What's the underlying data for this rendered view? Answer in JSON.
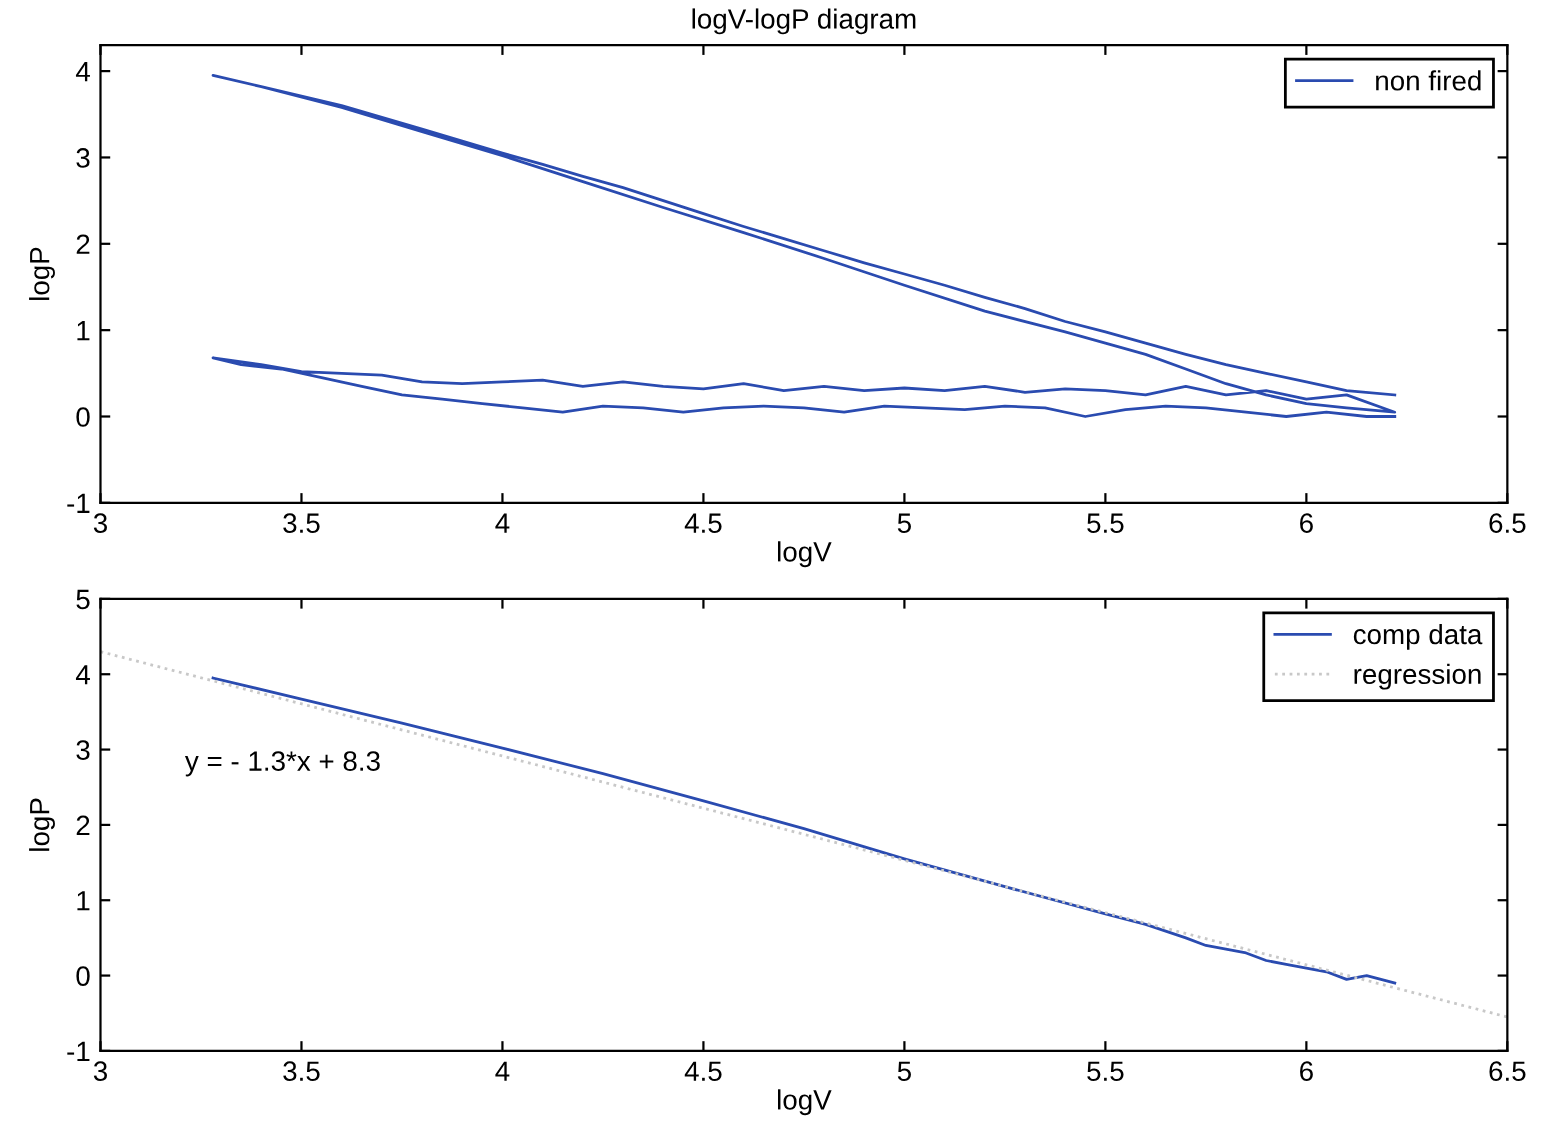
{
  "chart_data": [
    {
      "type": "line",
      "title": "logV-logP diagram",
      "xlabel": "logV",
      "ylabel": "logP",
      "xlim": [
        3,
        6.5
      ],
      "xticks": [
        3,
        3.5,
        4,
        4.5,
        5,
        5.5,
        6,
        6.5
      ],
      "ylim": [
        -1,
        4.3
      ],
      "yticks": [
        -1,
        0,
        1,
        2,
        3,
        4
      ],
      "grid": false,
      "legend": "top right",
      "series": [
        {
          "name": "non fired",
          "color": "#2a4bb0",
          "x": [
            6.22,
            6.1,
            6.0,
            5.9,
            5.8,
            5.7,
            5.6,
            5.5,
            5.4,
            5.3,
            5.2,
            5.1,
            5.0,
            4.9,
            4.8,
            4.7,
            4.6,
            4.5,
            4.4,
            4.3,
            4.2,
            4.1,
            4.0,
            3.8,
            3.6,
            3.4,
            3.28,
            3.4,
            3.6,
            3.8,
            4.0,
            4.2,
            4.4,
            4.6,
            4.8,
            5.0,
            5.2,
            5.4,
            5.5,
            5.6,
            5.7,
            5.8,
            5.9,
            6.0,
            6.1,
            6.22,
            6.1,
            6.0,
            5.9,
            5.8,
            5.7,
            5.6,
            5.5,
            5.4,
            5.3,
            5.2,
            5.1,
            5.0,
            4.9,
            4.8,
            4.7,
            4.6,
            4.5,
            4.4,
            4.3,
            4.2,
            4.1,
            4.0,
            3.9,
            3.8,
            3.7,
            3.6,
            3.5,
            3.4,
            3.28,
            3.35,
            3.45,
            3.55,
            3.65,
            3.75,
            3.85,
            3.95,
            4.05,
            4.15,
            4.25,
            4.35,
            4.45,
            4.55,
            4.65,
            4.75,
            4.85,
            4.95,
            5.05,
            5.15,
            5.25,
            5.35,
            5.45,
            5.55,
            5.65,
            5.75,
            5.85,
            5.95,
            6.05,
            6.15,
            6.22
          ],
          "values": [
            0.25,
            0.3,
            0.4,
            0.5,
            0.6,
            0.72,
            0.85,
            0.98,
            1.1,
            1.25,
            1.38,
            1.52,
            1.65,
            1.78,
            1.92,
            2.06,
            2.2,
            2.35,
            2.5,
            2.65,
            2.78,
            2.92,
            3.05,
            3.33,
            3.6,
            3.82,
            3.95,
            3.82,
            3.58,
            3.3,
            3.02,
            2.72,
            2.42,
            2.13,
            1.83,
            1.52,
            1.22,
            0.98,
            0.85,
            0.72,
            0.55,
            0.38,
            0.25,
            0.15,
            0.1,
            0.05,
            0.25,
            0.2,
            0.3,
            0.25,
            0.35,
            0.25,
            0.3,
            0.32,
            0.28,
            0.35,
            0.3,
            0.33,
            0.3,
            0.35,
            0.3,
            0.38,
            0.32,
            0.35,
            0.4,
            0.35,
            0.42,
            0.4,
            0.38,
            0.4,
            0.48,
            0.5,
            0.52,
            0.6,
            0.68,
            0.6,
            0.55,
            0.45,
            0.35,
            0.25,
            0.2,
            0.15,
            0.1,
            0.05,
            0.12,
            0.1,
            0.05,
            0.1,
            0.12,
            0.1,
            0.05,
            0.12,
            0.1,
            0.08,
            0.12,
            0.1,
            0.0,
            0.08,
            0.12,
            0.1,
            0.05,
            0.0,
            0.05,
            0.0,
            0.0
          ]
        }
      ]
    },
    {
      "type": "line",
      "xlabel": "logV",
      "ylabel": "logP",
      "xlim": [
        3,
        6.5
      ],
      "xticks": [
        3,
        3.5,
        4,
        4.5,
        5,
        5.5,
        6,
        6.5
      ],
      "ylim": [
        -1,
        5
      ],
      "yticks": [
        -1,
        0,
        1,
        2,
        3,
        4,
        5
      ],
      "grid": false,
      "legend": "top right",
      "annotations": [
        "y = - 1.3*x + 8.3"
      ],
      "series": [
        {
          "name": "comp data",
          "color": "#2a4bb0",
          "line_style": "solid",
          "x": [
            3.28,
            3.5,
            3.75,
            4,
            4.25,
            4.5,
            4.75,
            5,
            5.25,
            5.5,
            5.6,
            5.7,
            5.75,
            5.8,
            5.85,
            5.9,
            5.95,
            6.0,
            6.05,
            6.1,
            6.15,
            6.22
          ],
          "values": [
            3.95,
            3.67,
            3.35,
            3.02,
            2.68,
            2.32,
            1.95,
            1.55,
            1.18,
            0.82,
            0.68,
            0.5,
            0.4,
            0.35,
            0.3,
            0.2,
            0.15,
            0.1,
            0.05,
            -0.05,
            0.0,
            -0.1
          ]
        },
        {
          "name": "regression",
          "color": "#c8c8c8",
          "line_style": "dotted",
          "x": [
            3,
            6.5
          ],
          "values": [
            4.3,
            -0.55
          ]
        }
      ]
    }
  ]
}
